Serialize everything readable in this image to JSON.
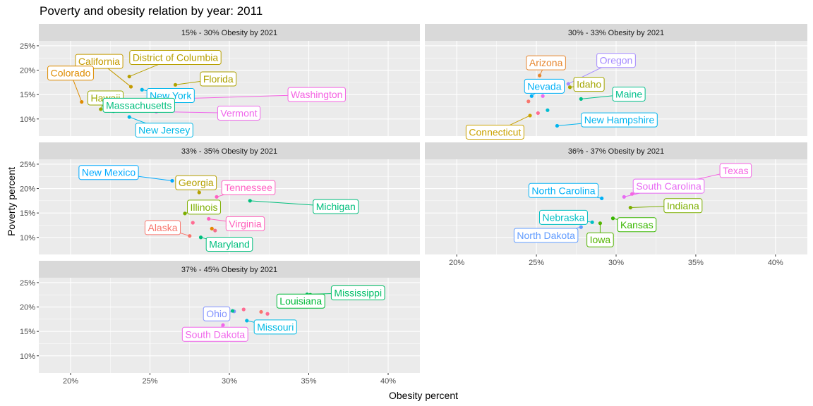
{
  "chart_data": {
    "type": "scatter",
    "title": "Poverty and obesity relation by year: 2011",
    "xlabel": "Obesity percent",
    "ylabel": "Poverty percent",
    "xlim": [
      18,
      42
    ],
    "ylim": [
      6.5,
      26
    ],
    "x_ticks": [
      20,
      25,
      30,
      35,
      40
    ],
    "x_tick_labels": [
      "20%",
      "25%",
      "30%",
      "35%",
      "40%"
    ],
    "y_ticks": [
      10,
      15,
      20,
      25
    ],
    "y_tick_labels": [
      "10%",
      "15%",
      "20%",
      "25%"
    ],
    "grid": true,
    "legend": "none",
    "facets": [
      {
        "title": "15% - 30% Obesity by 2021",
        "points": [
          {
            "state": "California",
            "x": 23.8,
            "y": 16.6,
            "color": "#C49A00",
            "label": true,
            "lx": 21.8,
            "ly": 21.8
          },
          {
            "state": "District of Columbia",
            "x": 23.7,
            "y": 18.7,
            "color": "#B79F00",
            "label": true,
            "lx": 26.6,
            "ly": 22.6
          },
          {
            "state": "Colorado",
            "x": 20.7,
            "y": 13.5,
            "color": "#DE8C00",
            "label": true,
            "lx": 20.0,
            "ly": 19.4
          },
          {
            "state": "Florida",
            "x": 26.6,
            "y": 17.0,
            "color": "#ADA200",
            "label": true,
            "lx": 29.3,
            "ly": 18.2
          },
          {
            "state": "Hawaii",
            "x": 21.9,
            "y": 12.0,
            "color": "#9AA800",
            "label": true,
            "lx": 22.2,
            "ly": 14.3
          },
          {
            "state": "New York",
            "x": 24.5,
            "y": 16.0,
            "color": "#00B6EB",
            "label": true,
            "lx": 26.3,
            "ly": 14.8
          },
          {
            "state": "Washington",
            "x": 27.2,
            "y": 14.2,
            "color": "#F564E3",
            "label": true,
            "lx": 35.5,
            "ly": 15.0
          },
          {
            "state": "Massachusetts",
            "x": 22.7,
            "y": 11.6,
            "color": "#00BF7D",
            "label": true,
            "lx": 24.3,
            "ly": 12.8
          },
          {
            "state": "Vermont",
            "x": 25.4,
            "y": 11.5,
            "color": "#EF67EB",
            "label": true,
            "lx": 30.6,
            "ly": 11.2
          },
          {
            "state": "New Jersey",
            "x": 23.7,
            "y": 10.4,
            "color": "#00B8E7",
            "label": true,
            "lx": 25.9,
            "ly": 7.7
          },
          {
            "state": "",
            "x": 23.2,
            "y": 13.8,
            "color": "#00BA38",
            "label": false
          }
        ]
      },
      {
        "title": "30% - 33% Obesity by 2021",
        "points": [
          {
            "state": "Arizona",
            "x": 25.2,
            "y": 18.9,
            "color": "#E6862F",
            "label": true,
            "lx": 25.6,
            "ly": 21.5
          },
          {
            "state": "Oregon",
            "x": 27.0,
            "y": 17.2,
            "color": "#A58AFF",
            "label": true,
            "lx": 30.0,
            "ly": 22.0
          },
          {
            "state": "Idaho",
            "x": 27.1,
            "y": 16.5,
            "color": "#A3A500",
            "label": true,
            "lx": 28.3,
            "ly": 17.1
          },
          {
            "state": "Nevada",
            "x": 24.7,
            "y": 14.7,
            "color": "#00B0F6",
            "label": true,
            "lx": 25.5,
            "ly": 16.7
          },
          {
            "state": "Maine",
            "x": 27.8,
            "y": 14.1,
            "color": "#00C08B",
            "label": true,
            "lx": 30.8,
            "ly": 15.1
          },
          {
            "state": "Connecticut",
            "x": 24.6,
            "y": 10.7,
            "color": "#C9A100",
            "label": true,
            "lx": 22.4,
            "ly": 7.3
          },
          {
            "state": "New Hampshire",
            "x": 26.3,
            "y": 8.6,
            "color": "#00B4EF",
            "label": true,
            "lx": 30.2,
            "ly": 9.8
          },
          {
            "state": "",
            "x": 24.5,
            "y": 13.6,
            "color": "#F8766D",
            "label": false
          },
          {
            "state": "",
            "x": 25.1,
            "y": 11.2,
            "color": "#FF6C91",
            "label": false
          },
          {
            "state": "",
            "x": 25.7,
            "y": 11.8,
            "color": "#00BDD2",
            "label": false
          },
          {
            "state": "",
            "x": 25.4,
            "y": 14.7,
            "color": "#E76BF3",
            "label": false
          }
        ]
      },
      {
        "title": "33% - 35% Obesity by 2021",
        "points": [
          {
            "state": "New Mexico",
            "x": 26.4,
            "y": 21.6,
            "color": "#00A9FF",
            "label": true,
            "lx": 22.4,
            "ly": 23.3
          },
          {
            "state": "Georgia",
            "x": 28.1,
            "y": 19.2,
            "color": "#B5A000",
            "label": true,
            "lx": 27.9,
            "ly": 21.2
          },
          {
            "state": "Tennessee",
            "x": 29.2,
            "y": 18.3,
            "color": "#FF61C3",
            "label": true,
            "lx": 31.2,
            "ly": 20.2
          },
          {
            "state": "Michigan",
            "x": 31.3,
            "y": 17.5,
            "color": "#00BF7D",
            "label": true,
            "lx": 36.7,
            "ly": 16.3
          },
          {
            "state": "Illinois",
            "x": 27.2,
            "y": 14.9,
            "color": "#7CAE00",
            "label": true,
            "lx": 28.4,
            "ly": 16.2
          },
          {
            "state": "Virginia",
            "x": 28.7,
            "y": 13.8,
            "color": "#FF62BC",
            "label": true,
            "lx": 31.0,
            "ly": 12.8
          },
          {
            "state": "Alaska",
            "x": 27.5,
            "y": 10.3,
            "color": "#F8766D",
            "label": true,
            "lx": 25.8,
            "ly": 12.0
          },
          {
            "state": "Maryland",
            "x": 28.2,
            "y": 10.0,
            "color": "#00BF7D",
            "label": true,
            "lx": 30.0,
            "ly": 8.6
          },
          {
            "state": "",
            "x": 27.7,
            "y": 13.0,
            "color": "#FF6B92",
            "label": false
          },
          {
            "state": "",
            "x": 28.9,
            "y": 11.8,
            "color": "#E58700",
            "label": false
          },
          {
            "state": "",
            "x": 29.1,
            "y": 11.4,
            "color": "#F26E8C",
            "label": false
          }
        ]
      },
      {
        "title": "36% - 37% Obesity by 2021",
        "points": [
          {
            "state": "Texas",
            "x": 31.0,
            "y": 18.9,
            "color": "#F564E3",
            "label": true,
            "lx": 37.5,
            "ly": 23.7
          },
          {
            "state": "South Carolina",
            "x": 30.5,
            "y": 18.3,
            "color": "#E76BF3",
            "label": true,
            "lx": 33.3,
            "ly": 20.5
          },
          {
            "state": "North Carolina",
            "x": 29.1,
            "y": 18.0,
            "color": "#00B0F6",
            "label": true,
            "lx": 26.7,
            "ly": 19.6
          },
          {
            "state": "Indiana",
            "x": 30.9,
            "y": 16.1,
            "color": "#7CAE00",
            "label": true,
            "lx": 34.2,
            "ly": 16.5
          },
          {
            "state": "Nebraska",
            "x": 28.5,
            "y": 13.1,
            "color": "#00BFC4",
            "label": true,
            "lx": 26.7,
            "ly": 14.1
          },
          {
            "state": "Kansas",
            "x": 29.8,
            "y": 13.9,
            "color": "#39B600",
            "label": true,
            "lx": 31.3,
            "ly": 12.6
          },
          {
            "state": "North Dakota",
            "x": 27.8,
            "y": 12.1,
            "color": "#619CFF",
            "label": true,
            "lx": 25.6,
            "ly": 10.4
          },
          {
            "state": "Iowa",
            "x": 29.0,
            "y": 12.9,
            "color": "#53B400",
            "label": true,
            "lx": 29.0,
            "ly": 9.5
          }
        ]
      },
      {
        "title": "37% - 45% Obesity by 2021",
        "points": [
          {
            "state": "Mississippi",
            "x": 34.9,
            "y": 22.6,
            "color": "#00BE67",
            "label": true,
            "lx": 38.1,
            "ly": 22.9
          },
          {
            "state": "Louisiana",
            "x": 35.1,
            "y": 22.5,
            "color": "#00BA38",
            "label": true,
            "lx": 34.5,
            "ly": 21.2
          },
          {
            "state": "Ohio",
            "x": 30.3,
            "y": 19.1,
            "color": "#8494FF",
            "label": true,
            "lx": 29.2,
            "ly": 18.6
          },
          {
            "state": "Missouri",
            "x": 31.1,
            "y": 17.2,
            "color": "#00B9E3",
            "label": true,
            "lx": 32.9,
            "ly": 15.9
          },
          {
            "state": "South Dakota",
            "x": 29.6,
            "y": 16.3,
            "color": "#F066EA",
            "label": true,
            "lx": 29.1,
            "ly": 14.4
          },
          {
            "state": "",
            "x": 30.9,
            "y": 19.5,
            "color": "#FF6B92",
            "label": false
          },
          {
            "state": "",
            "x": 32.0,
            "y": 19.0,
            "color": "#F8766D",
            "label": false
          },
          {
            "state": "",
            "x": 32.4,
            "y": 18.6,
            "color": "#FF6C91",
            "label": false
          },
          {
            "state": "",
            "x": 30.2,
            "y": 19.2,
            "color": "#00C08B",
            "label": false
          }
        ]
      }
    ]
  }
}
